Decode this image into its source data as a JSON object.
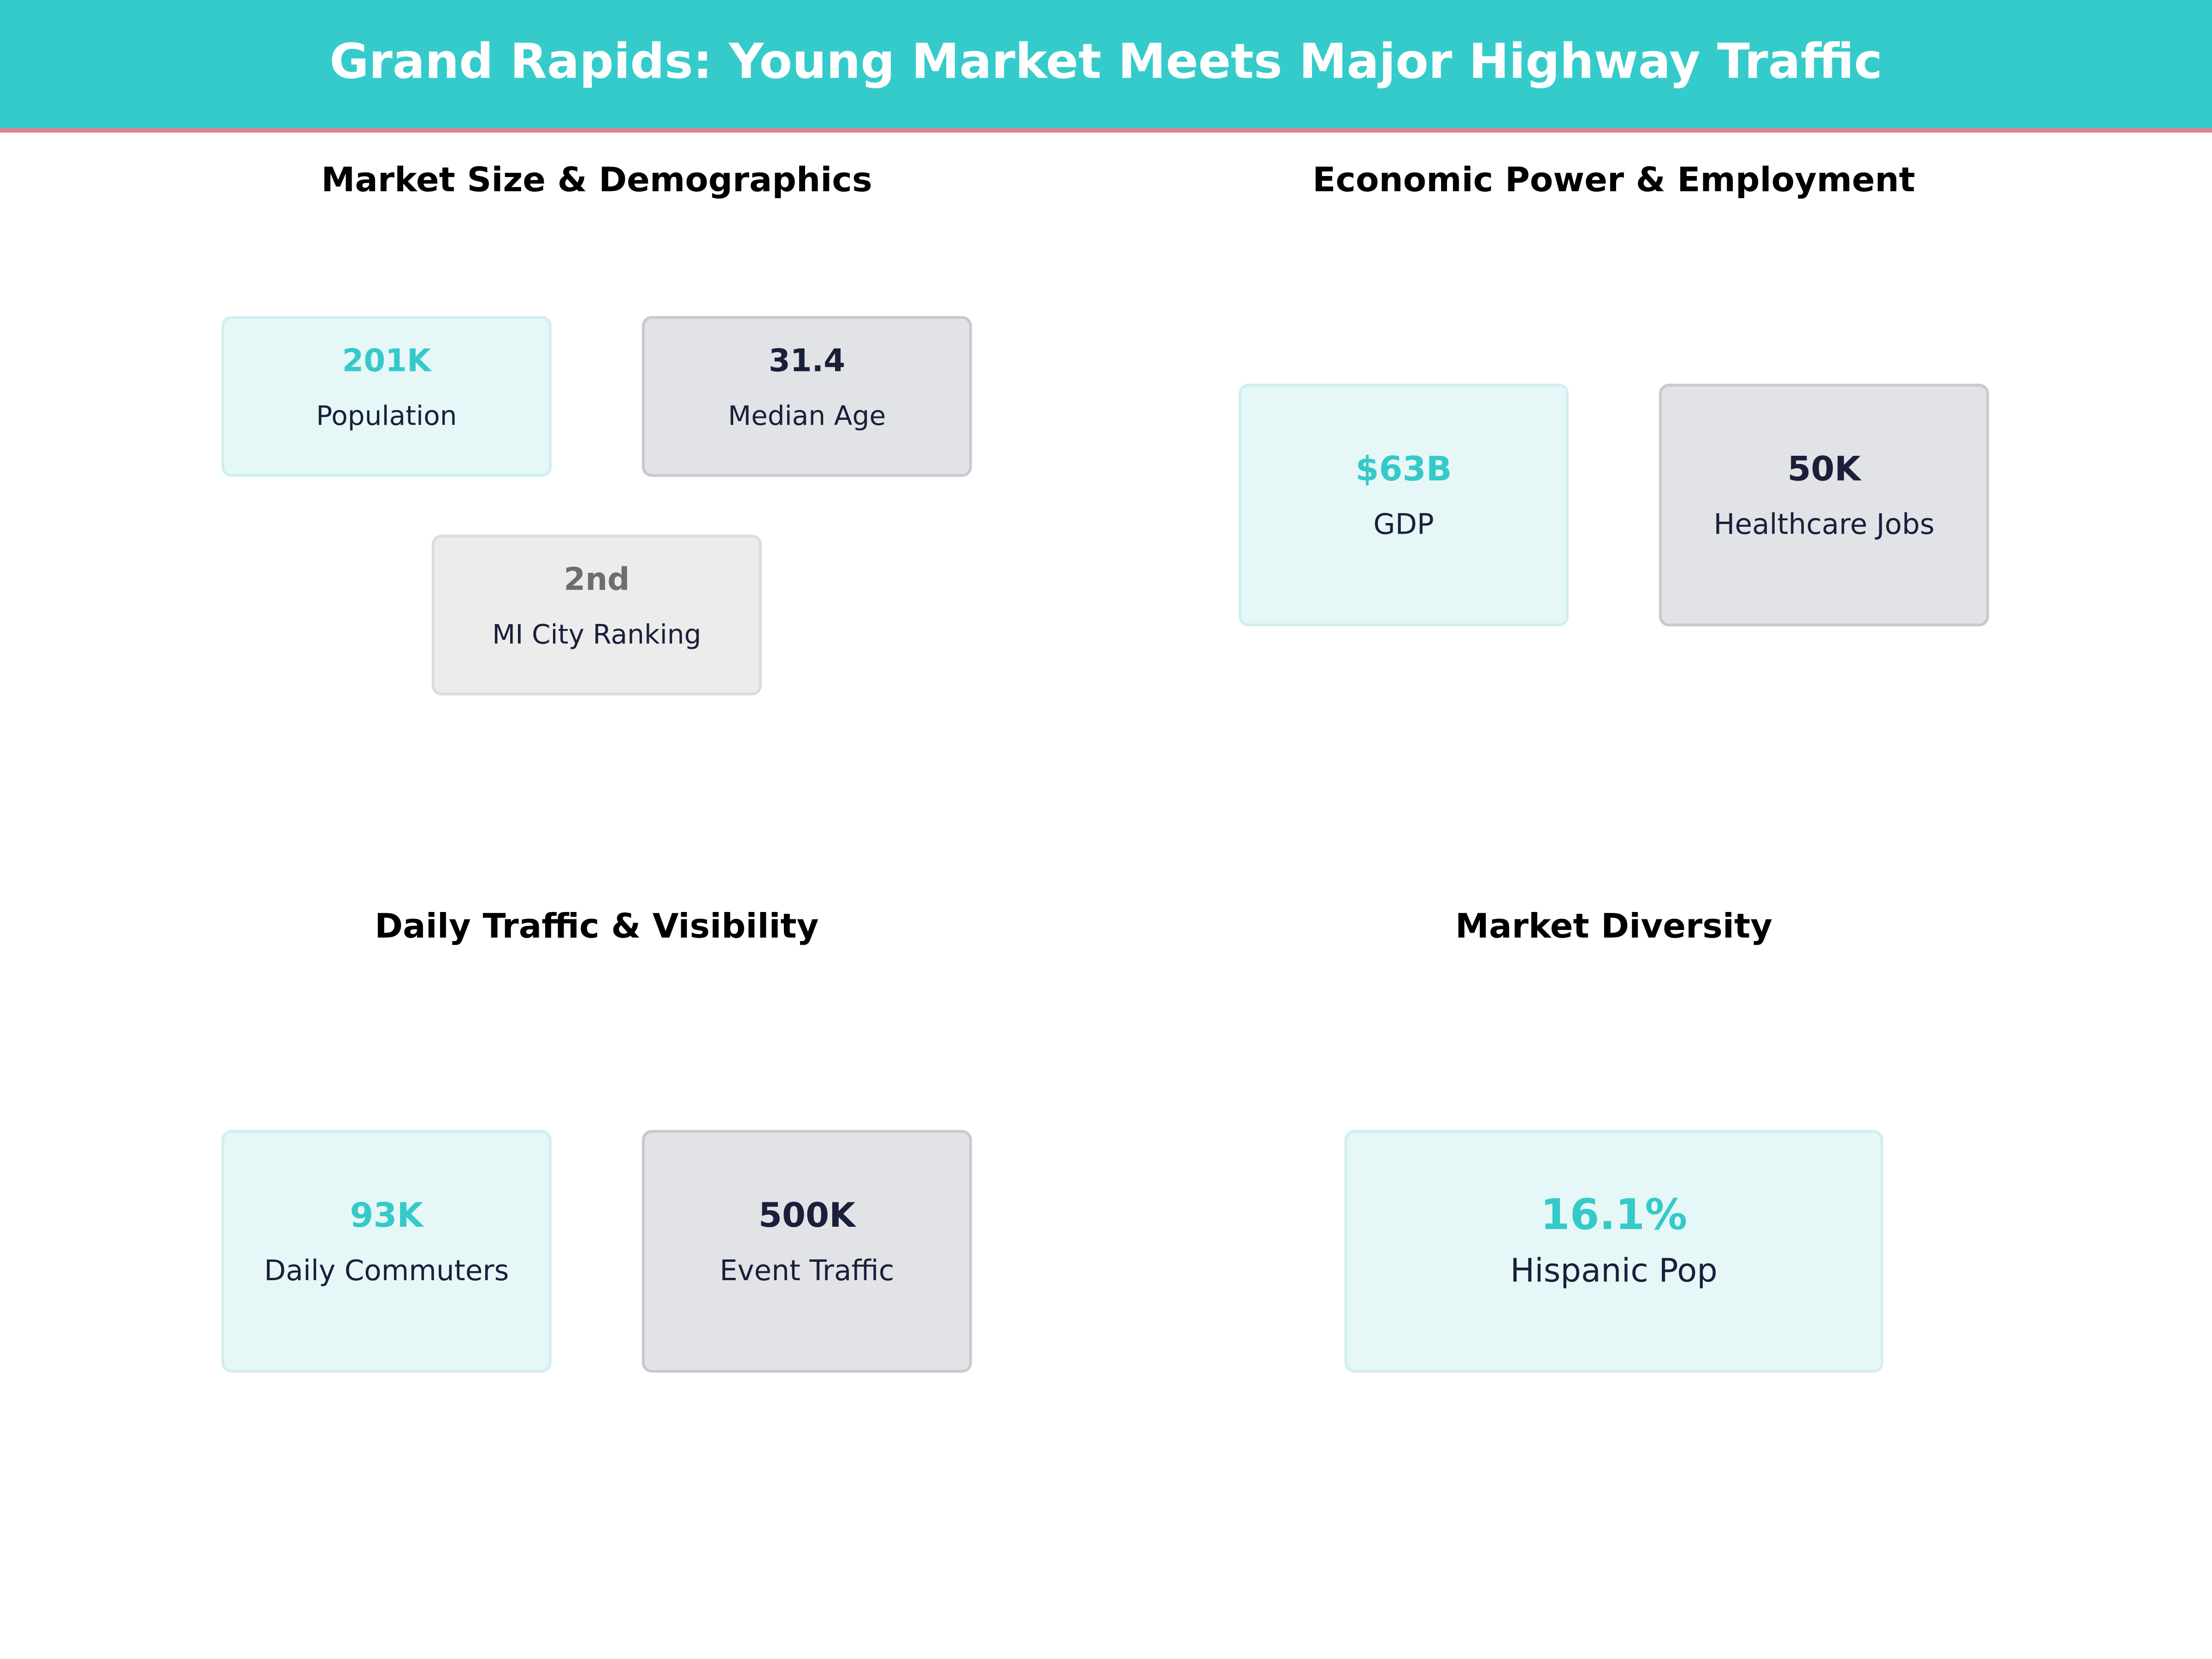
{
  "header": {
    "title": "Grand Rapids: Young Market Meets Major Highway Traffic"
  },
  "sections": [
    {
      "title": "Market Size & Demographics",
      "cards": [
        {
          "value": "201K",
          "label": "Population"
        },
        {
          "value": "31.4",
          "label": "Median Age"
        },
        {
          "value": "2nd",
          "label": "MI City Ranking"
        }
      ]
    },
    {
      "title": "Economic Power & Employment",
      "cards": [
        {
          "value": "$63B",
          "label": "GDP"
        },
        {
          "value": "50K",
          "label": "Healthcare Jobs"
        }
      ]
    },
    {
      "title": "Daily Traffic & Visibility",
      "cards": [
        {
          "value": "93K",
          "label": "Daily Commuters"
        },
        {
          "value": "500K",
          "label": "Event Traffic"
        }
      ]
    },
    {
      "title": "Market Diversity",
      "cards": [
        {
          "value": "16.1%",
          "label": "Hispanic Pop"
        }
      ]
    }
  ]
}
